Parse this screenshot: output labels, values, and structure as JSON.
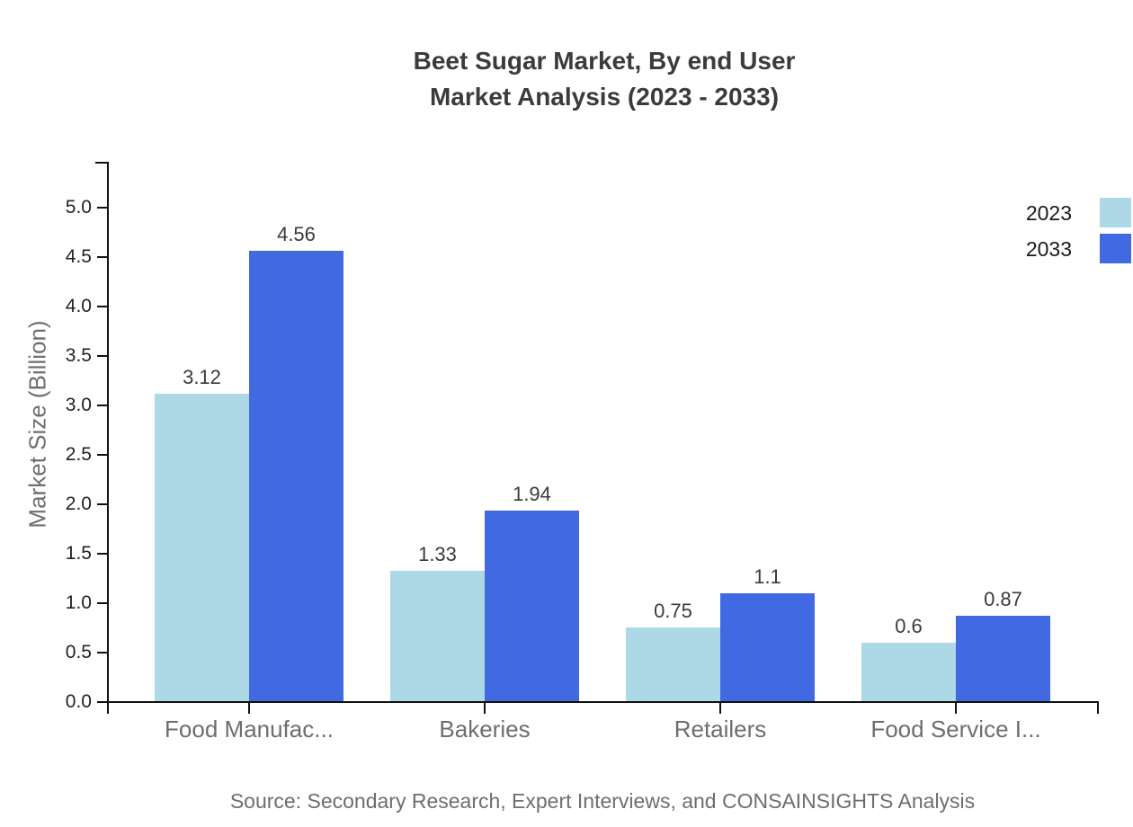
{
  "page": {
    "background": "#ffffff"
  },
  "chart_data": {
    "type": "bar",
    "title_line1": "Beet Sugar Market, By end User",
    "title_line2": "Market Analysis (2023 - 2033)",
    "ylabel": "Market Size (Billion)",
    "xlabel": "",
    "categories": [
      "Food Manufac...",
      "Bakeries",
      "Retailers",
      "Food Service I..."
    ],
    "series": [
      {
        "name": "2023",
        "color": "#ADD8E6",
        "values": [
          3.12,
          1.33,
          0.75,
          0.6
        ],
        "labels": [
          "3.12",
          "1.33",
          "0.75",
          "0.6"
        ]
      },
      {
        "name": "2033",
        "color": "#4169E1",
        "values": [
          4.56,
          1.94,
          1.1,
          0.87
        ],
        "labels": [
          "4.56",
          "1.94",
          "1.1",
          "0.87"
        ]
      }
    ],
    "yticks": [
      "0.0",
      "0.5",
      "1.0",
      "1.5",
      "2.0",
      "2.5",
      "3.0",
      "3.5",
      "4.0",
      "4.5",
      "5.0"
    ],
    "ylim": [
      0,
      5.45
    ],
    "grid": false,
    "legend": {
      "position": "top-right",
      "entries": [
        "2023",
        "2033"
      ]
    },
    "source": "Source: Secondary Research, Expert Interviews, and CONSAINSIGHTS Analysis",
    "colors": {
      "series_2023": "#ADD8E6",
      "series_2033": "#4169E1",
      "axis": "#111111",
      "title_text": "#3b3b3b",
      "muted_text": "#6e6e6e"
    }
  }
}
